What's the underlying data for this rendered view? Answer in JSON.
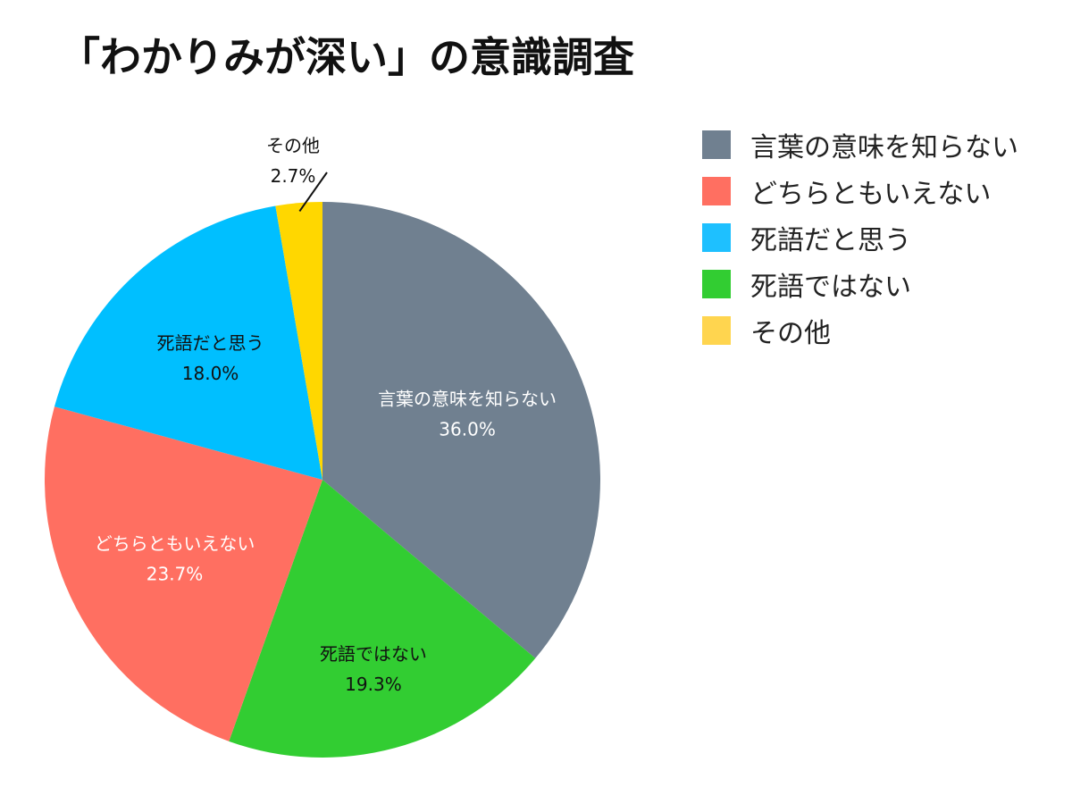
{
  "chart_data": {
    "type": "pie",
    "title": "「わかりみが深い」の意識調査",
    "legend_position": "right",
    "slices": [
      {
        "name": "言葉の意味を知らない",
        "value": 36.0,
        "label": "36.0%",
        "color": "#708090"
      },
      {
        "name": "死語ではない",
        "value": 19.3,
        "label": "19.3%",
        "color": "#32cd32"
      },
      {
        "name": "どちらともいえない",
        "value": 23.7,
        "label": "23.7%",
        "color": "#ff6f61"
      },
      {
        "name": "死語だと思う",
        "value": 18.0,
        "label": "18.0%",
        "color": "#00bfff"
      },
      {
        "name": "その他",
        "value": 2.7,
        "label": "2.7%",
        "color": "#ffd700"
      }
    ],
    "legend": [
      {
        "name": "言葉の意味を知らない",
        "color": "#708090"
      },
      {
        "name": "どちらともいえない",
        "color": "#ff6f61"
      },
      {
        "name": "死語だと思う",
        "color": "#1ec0ff"
      },
      {
        "name": "死語ではない",
        "color": "#32cd32"
      },
      {
        "name": "その他",
        "color": "#ffd54f"
      }
    ]
  }
}
